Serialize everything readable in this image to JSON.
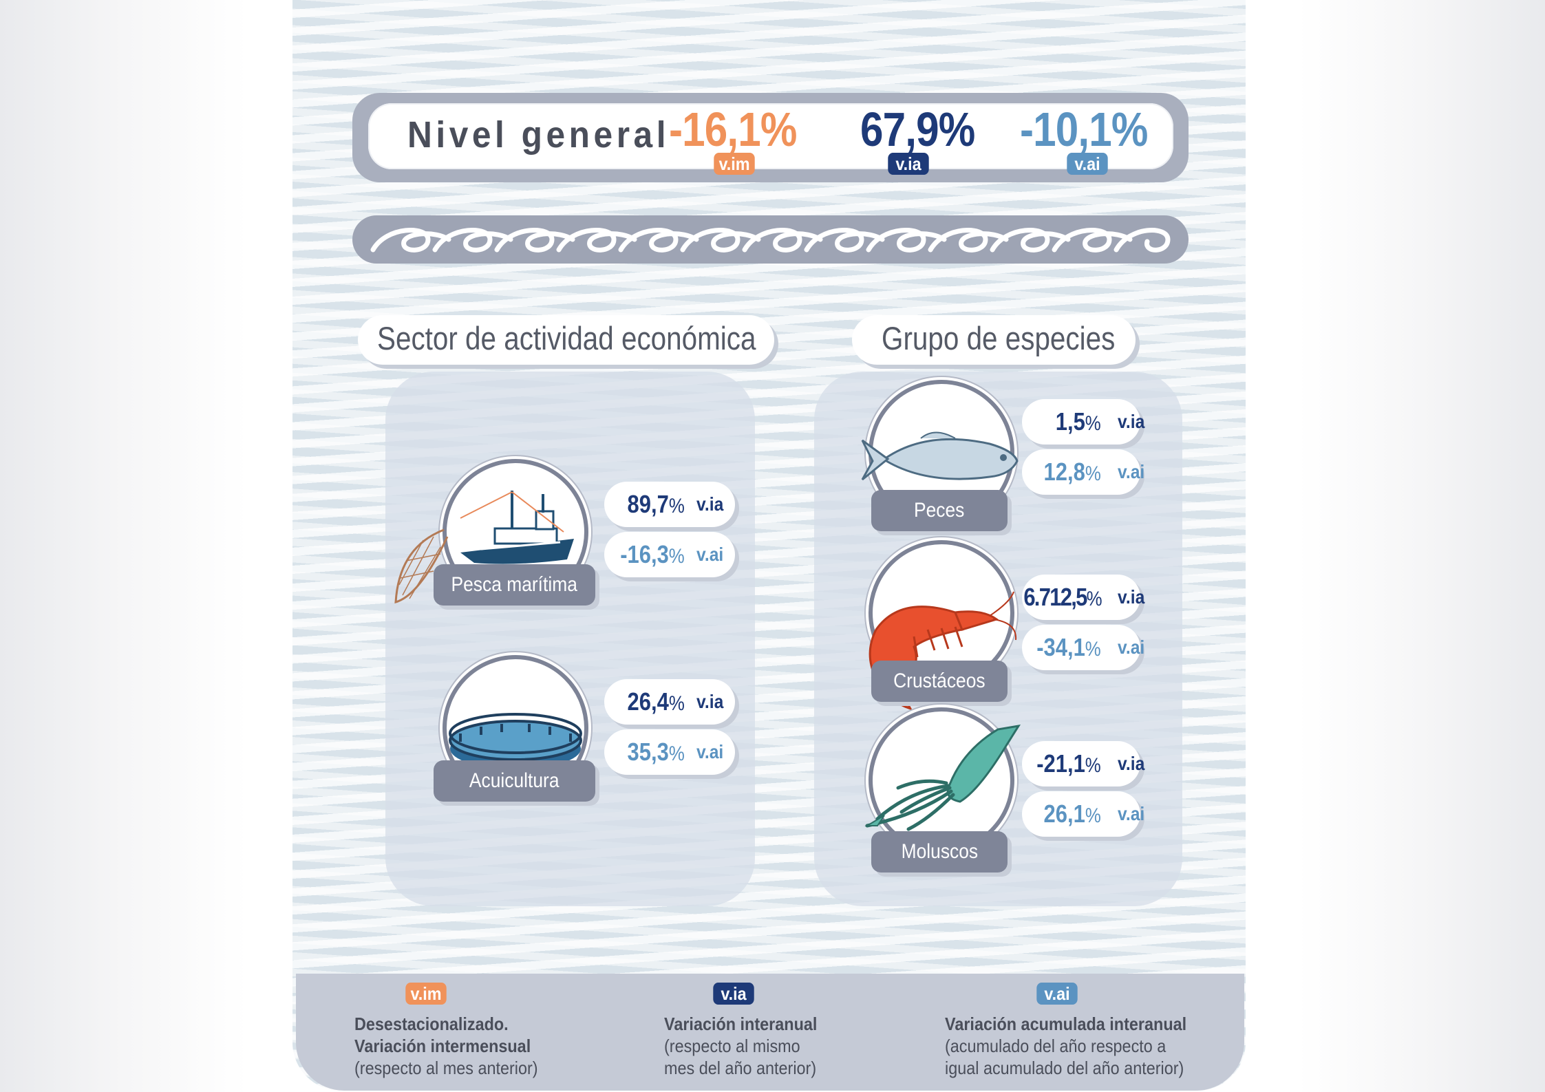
{
  "colors": {
    "vim": "#f0925a",
    "via": "#1e3a78",
    "vai": "#5b93c1",
    "label_bg": "#7f8598",
    "text_dark": "#4a4e5a"
  },
  "nivel_general": {
    "label": "Nivel general",
    "vim_value": "-16,1%",
    "via_value": "67,9%",
    "vai_value": "-10,1%",
    "vim_badge": "v.im",
    "via_badge": "v.ia",
    "vai_badge": "v.ai"
  },
  "sector": {
    "title": "Sector de actividad económica",
    "items": [
      {
        "label": "Pesca marítima",
        "icon": "fishing-boat-icon",
        "via": "89,7",
        "vai": "-16,3",
        "pct": "%",
        "via_tag": "v.ia",
        "vai_tag": "v.ai"
      },
      {
        "label": "Acuicultura",
        "icon": "fish-farm-icon",
        "via": "26,4",
        "vai": "35,3",
        "pct": "%",
        "via_tag": "v.ia",
        "vai_tag": "v.ai"
      }
    ]
  },
  "especies": {
    "title": "Grupo de especies",
    "items": [
      {
        "label": "Peces",
        "icon": "fish-icon",
        "via": "1,5",
        "vai": "12,8",
        "pct": "%",
        "via_tag": "v.ia",
        "vai_tag": "v.ai"
      },
      {
        "label": "Crustáceos",
        "icon": "shrimp-icon",
        "via": "6.712,5",
        "vai": "-34,1",
        "pct": "%",
        "via_tag": "v.ia",
        "vai_tag": "v.ai"
      },
      {
        "label": "Moluscos",
        "icon": "squid-icon",
        "via": "-21,1",
        "vai": "26,1",
        "pct": "%",
        "via_tag": "v.ia",
        "vai_tag": "v.ai"
      }
    ]
  },
  "legend": {
    "vim": {
      "badge": "v.im",
      "line1": "Desestacionalizado.",
      "line2": "Variación intermensual",
      "line3": "(respecto al mes anterior)"
    },
    "via": {
      "badge": "v.ia",
      "line1": "Variación interanual",
      "line2": "(respecto al mismo",
      "line3": "mes del año anterior)"
    },
    "vai": {
      "badge": "v.ai",
      "line1": "Variación acumulada interanual",
      "line2": "(acumulado del año respecto a",
      "line3": "igual acumulado del año anterior)"
    }
  }
}
